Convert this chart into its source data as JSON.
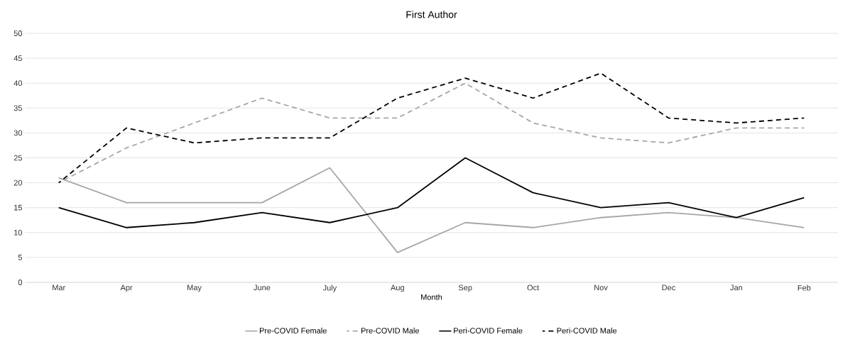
{
  "chart_data": {
    "type": "line",
    "title": "First Author",
    "xlabel": "Month",
    "categories": [
      "Mar",
      "Apr",
      "May",
      "June",
      "July",
      "Aug",
      "Sep",
      "Oct",
      "Nov",
      "Dec",
      "Jan",
      "Feb"
    ],
    "series": [
      {
        "name": "Pre-COVID Female",
        "color": "#a6a6a6",
        "line_style": "solid",
        "values": [
          21,
          16,
          16,
          16,
          23,
          6,
          12,
          11,
          13,
          14,
          13,
          11
        ]
      },
      {
        "name": "Pre-COVID Male",
        "color": "#a6a6a6",
        "line_style": "dashed",
        "values": [
          20,
          27,
          32,
          37,
          33,
          33,
          40,
          32,
          29,
          28,
          31,
          31
        ]
      },
      {
        "name": "Peri-COVID Female",
        "color": "#000000",
        "line_style": "solid",
        "values": [
          15,
          11,
          12,
          14,
          12,
          15,
          25,
          18,
          15,
          16,
          13,
          17
        ]
      },
      {
        "name": "Peri-COVID Male",
        "color": "#000000",
        "line_style": "dashed",
        "values": [
          20,
          31,
          28,
          29,
          29,
          37,
          41,
          37,
          42,
          33,
          32,
          33
        ]
      }
    ],
    "ylim": [
      0,
      50
    ],
    "yticks": [
      0,
      5,
      10,
      15,
      20,
      25,
      30,
      35,
      40,
      45,
      50
    ],
    "grid": "y",
    "legend": "bottom",
    "marker": "none"
  }
}
